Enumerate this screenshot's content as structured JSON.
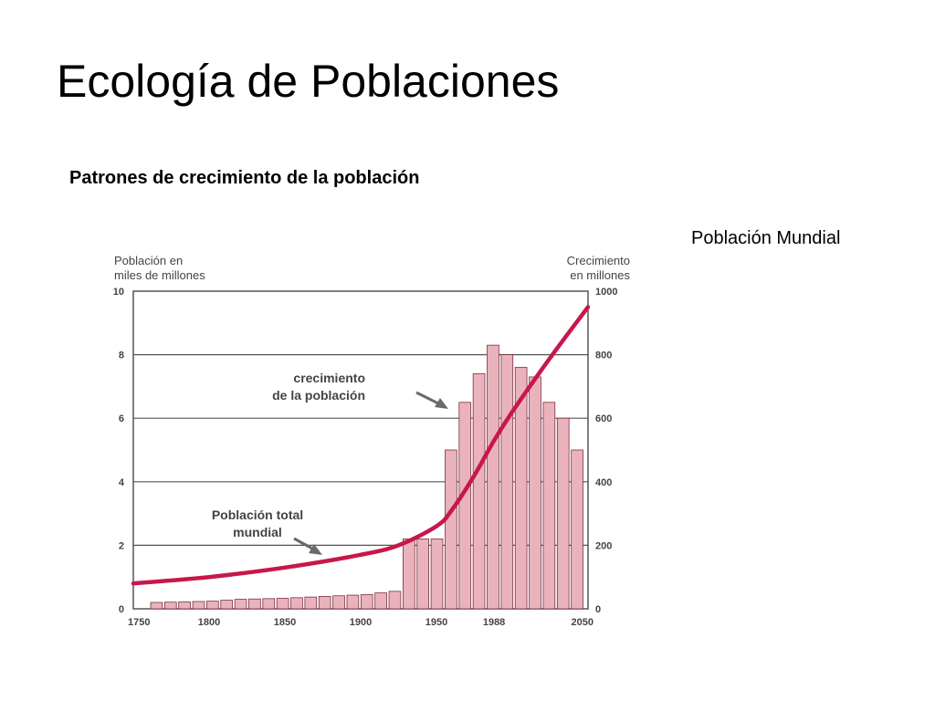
{
  "slide": {
    "title": "Ecología de Poblaciones",
    "subtitle": "Patrones de crecimiento de la población",
    "caption": "Población Mundial"
  },
  "colors": {
    "bar_fill": "#eab3bc",
    "bar_stroke": "#7a3040",
    "line": "#c8174a",
    "grid": "#555555",
    "text": "#444444"
  },
  "chart_data": {
    "type": "bar",
    "left_axis_label": [
      "Población en",
      "miles de millones"
    ],
    "right_axis_label": [
      "Crecimiento",
      "en millones"
    ],
    "left_ticks": [
      "0",
      "2",
      "4",
      "6",
      "8",
      "10"
    ],
    "right_ticks": [
      "0",
      "200",
      "400",
      "600",
      "800",
      "1000"
    ],
    "x_ticks": [
      "1750",
      "1800",
      "1850",
      "1900",
      "1950",
      "1988",
      "2050"
    ],
    "left_ylim": [
      0,
      10
    ],
    "right_ylim": [
      0,
      1000
    ],
    "grid": true,
    "series": [
      {
        "name": "crecimiento de la población",
        "axis": "right",
        "type": "bar",
        "values": [
          20,
          21,
          22,
          23,
          24,
          27,
          30,
          31,
          32,
          33,
          35,
          37,
          39,
          41,
          43,
          45,
          50,
          55,
          220,
          220,
          220,
          500,
          650,
          740,
          830,
          800,
          760,
          730,
          650,
          600,
          500
        ]
      },
      {
        "name": "Población total mundial",
        "axis": "left",
        "type": "line",
        "x": [
          1750,
          1800,
          1850,
          1900,
          1925,
          1950,
          1960,
          1975,
          1988,
          2000,
          2025,
          2050
        ],
        "values": [
          0.8,
          1.0,
          1.3,
          1.7,
          2.0,
          2.6,
          3.1,
          4.2,
          5.3,
          6.2,
          7.9,
          9.5
        ]
      }
    ],
    "annotations": [
      [
        "crecimiento",
        "de la población"
      ],
      [
        "Población total",
        "mundial"
      ]
    ]
  }
}
